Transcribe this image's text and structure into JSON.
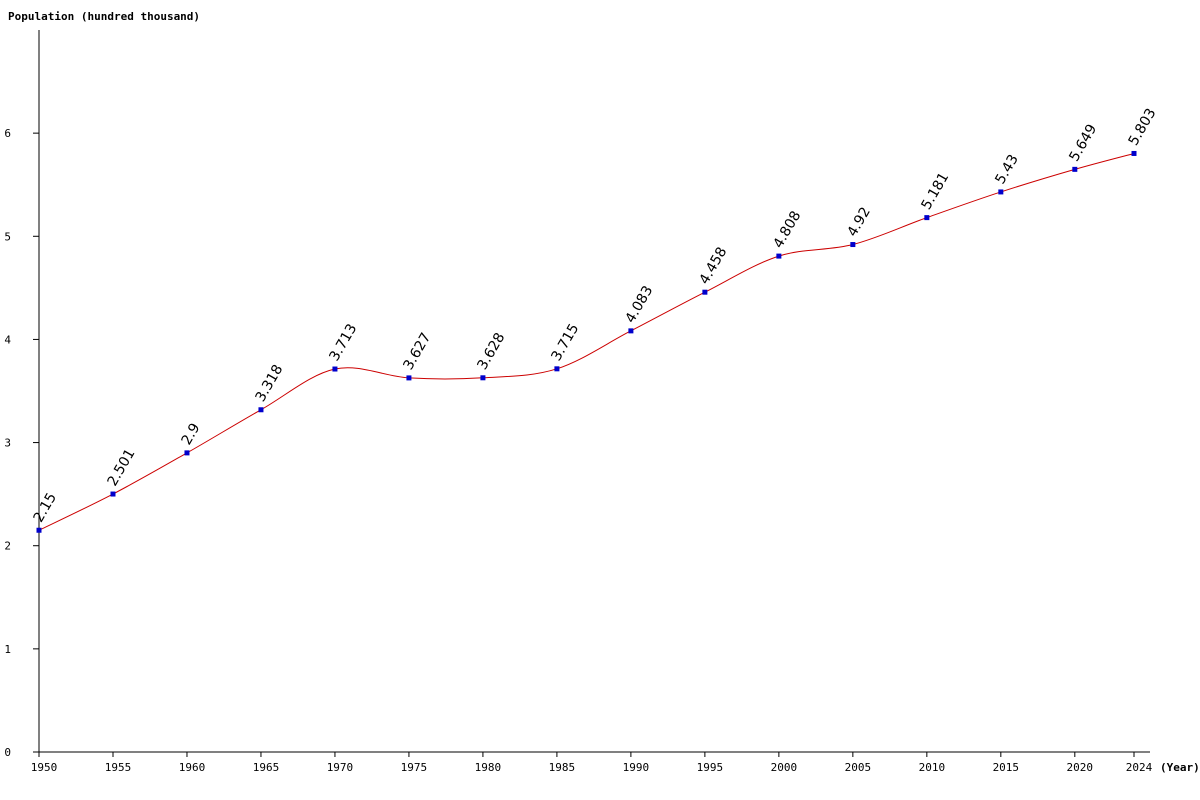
{
  "chart_data": {
    "type": "line",
    "ylabel": "Population (hundred thousand)",
    "xlabel": "(Year)",
    "x": [
      1950,
      1955,
      1960,
      1965,
      1970,
      1975,
      1980,
      1985,
      1990,
      1995,
      2000,
      2005,
      2010,
      2015,
      2020,
      2024
    ],
    "x_tick_labels": [
      "1950",
      "1955",
      "1960",
      "1965",
      "1970",
      "1975",
      "1980",
      "1985",
      "1990",
      "1995",
      "2000",
      "2005",
      "2010",
      "2015",
      "2020",
      "2024"
    ],
    "values": [
      2.15,
      2.501,
      2.9,
      3.318,
      3.713,
      3.627,
      3.628,
      3.715,
      4.083,
      4.458,
      4.808,
      4.92,
      5.181,
      5.43,
      5.649,
      5.803
    ],
    "value_labels": [
      "2.15",
      "2.501",
      "2.9",
      "3.318",
      "3.713",
      "3.627",
      "3.628",
      "3.715",
      "4.083",
      "4.458",
      "4.808",
      "4.92",
      "5.181",
      "5.43",
      "5.649",
      "5.803"
    ],
    "y_ticks": [
      0,
      1,
      2,
      3,
      4,
      5,
      6
    ],
    "y_tick_labels": [
      "0",
      "1",
      "2",
      "3",
      "4",
      "5",
      "6"
    ],
    "xlim": [
      1950,
      2024
    ],
    "ylim": [
      0,
      7
    ],
    "grid": false,
    "line_color": "#cc0000",
    "marker_color": "#0000cc"
  }
}
